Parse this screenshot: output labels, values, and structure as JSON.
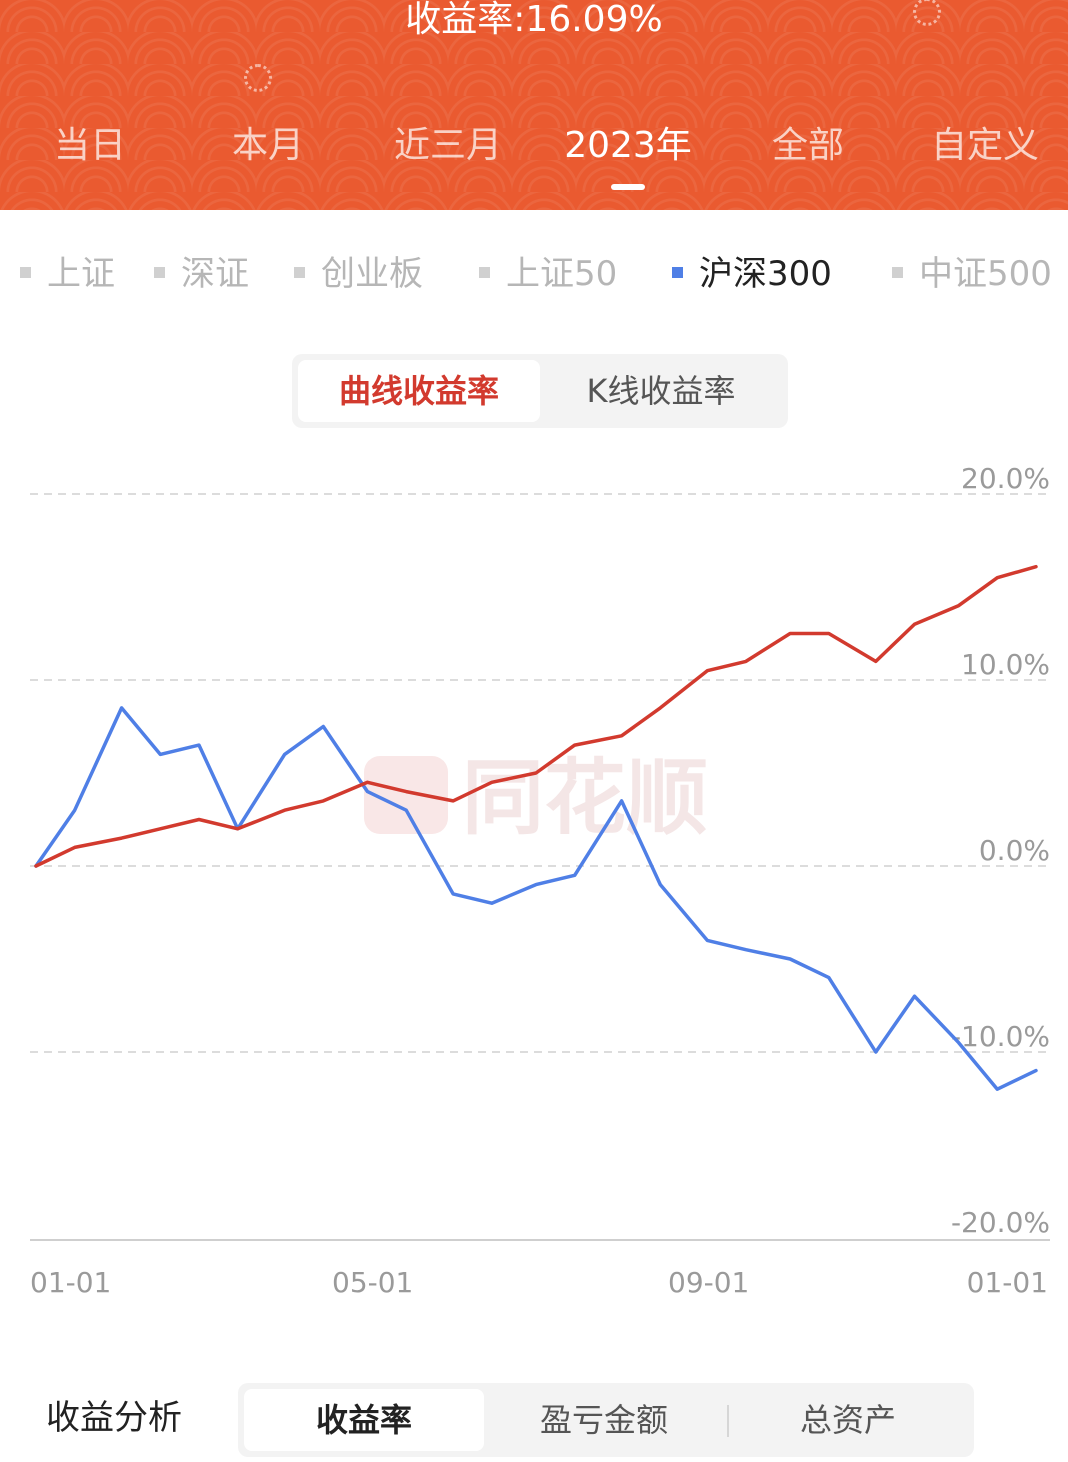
{
  "header": {
    "title": "收益率:16.09%",
    "period_tabs": [
      {
        "label": "当日",
        "active": false
      },
      {
        "label": "本月",
        "active": false
      },
      {
        "label": "近三月",
        "active": false
      },
      {
        "label": "2023年",
        "active": true
      },
      {
        "label": "全部",
        "active": false
      },
      {
        "label": "自定义",
        "active": false
      }
    ]
  },
  "index_selector": [
    {
      "label": "上证",
      "active": false
    },
    {
      "label": "深证",
      "active": false
    },
    {
      "label": "创业板",
      "active": false
    },
    {
      "label": "上证50",
      "active": false
    },
    {
      "label": "沪深300",
      "active": true
    },
    {
      "label": "中证500",
      "active": false
    }
  ],
  "curve_type": {
    "options": [
      "曲线收益率",
      "K线收益率"
    ],
    "selected": "曲线收益率"
  },
  "colors": {
    "brand_orange": "#ea5a30",
    "portfolio_line": "#d23a2e",
    "index_line": "#4f7fe6"
  },
  "watermark": "同花顺",
  "chart_data": {
    "type": "line",
    "y_ticks": [
      "20.0%",
      "10.0%",
      "0.0%",
      "-10.0%",
      "-20.0%"
    ],
    "ylim": [
      -20,
      20
    ],
    "x_ticks": [
      "01-01",
      "05-01",
      "09-01",
      "01-01"
    ],
    "grid": "dashed-horizontal",
    "series": [
      {
        "color": "#d23a2e",
        "x": [
          "2023-01-01",
          "2023-01-15",
          "2023-02-01",
          "2023-02-15",
          "2023-03-01",
          "2023-03-15",
          "2023-04-01",
          "2023-04-15",
          "2023-05-01",
          "2023-05-15",
          "2023-06-01",
          "2023-06-15",
          "2023-07-01",
          "2023-07-15",
          "2023-08-01",
          "2023-08-15",
          "2023-09-01",
          "2023-09-15",
          "2023-10-01",
          "2023-10-15",
          "2023-11-01",
          "2023-11-15",
          "2023-12-01",
          "2023-12-15",
          "2023-12-29"
        ],
        "values": [
          0.0,
          1.0,
          1.5,
          2.0,
          2.5,
          2.0,
          3.0,
          3.5,
          4.5,
          4.0,
          3.5,
          4.5,
          5.0,
          6.5,
          7.0,
          8.5,
          10.5,
          11.0,
          12.5,
          12.5,
          11.0,
          13.0,
          14.0,
          15.5,
          16.09
        ]
      },
      {
        "color": "#4f7fe6",
        "x": [
          "2023-01-01",
          "2023-01-15",
          "2023-02-01",
          "2023-02-15",
          "2023-03-01",
          "2023-03-15",
          "2023-04-01",
          "2023-04-15",
          "2023-05-01",
          "2023-05-15",
          "2023-06-01",
          "2023-06-15",
          "2023-07-01",
          "2023-07-15",
          "2023-08-01",
          "2023-08-15",
          "2023-09-01",
          "2023-09-15",
          "2023-10-01",
          "2023-10-15",
          "2023-11-01",
          "2023-11-15",
          "2023-12-01",
          "2023-12-15",
          "2023-12-29"
        ],
        "values": [
          0.0,
          3.0,
          8.5,
          6.0,
          6.5,
          2.0,
          6.0,
          7.5,
          4.0,
          3.0,
          -1.5,
          -2.0,
          -1.0,
          -0.5,
          3.5,
          -1.0,
          -4.0,
          -4.5,
          -5.0,
          -6.0,
          -10.0,
          -7.0,
          -9.5,
          -12.0,
          -11.0
        ]
      }
    ]
  },
  "analysis": {
    "label": "收益分析",
    "tabs": [
      {
        "label": "收益率",
        "active": true
      },
      {
        "label": "盈亏金额",
        "active": false
      },
      {
        "label": "总资产",
        "active": false
      }
    ]
  }
}
